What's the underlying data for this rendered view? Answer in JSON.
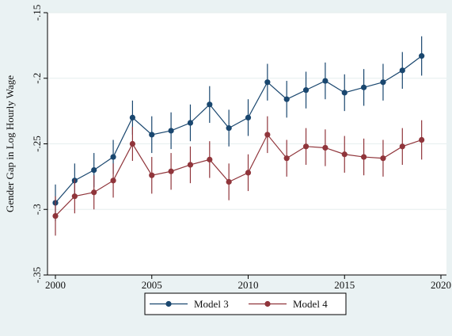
{
  "chart_data": {
    "type": "line",
    "title": "",
    "xlabel": "",
    "ylabel": "Gender Gap in Log Hourly Wage",
    "xlim": [
      2000,
      2020
    ],
    "ylim": [
      -0.35,
      -0.15
    ],
    "x_ticks": [
      2000,
      2005,
      2010,
      2015,
      2020
    ],
    "x_tick_labels": [
      "2000",
      "2005",
      "2010",
      "2015",
      "2020"
    ],
    "y_ticks": [
      -0.35,
      -0.3,
      -0.25,
      -0.2,
      -0.15
    ],
    "y_tick_labels": [
      "-.35",
      "-.3",
      "-.25",
      "-.2",
      "-.15"
    ],
    "grid": true,
    "legend_position": "bottom",
    "x": [
      2000,
      2001,
      2002,
      2003,
      2004,
      2005,
      2006,
      2007,
      2008,
      2009,
      2010,
      2011,
      2012,
      2013,
      2014,
      2015,
      2016,
      2017,
      2018,
      2019
    ],
    "series": [
      {
        "name": "Model 3",
        "color": "#1a476f",
        "values": [
          -0.295,
          -0.278,
          -0.27,
          -0.26,
          -0.23,
          -0.243,
          -0.24,
          -0.234,
          -0.22,
          -0.238,
          -0.23,
          -0.203,
          -0.216,
          -0.209,
          -0.202,
          -0.211,
          -0.207,
          -0.203,
          -0.194,
          -0.183
        ],
        "ci_low": [
          -0.309,
          -0.291,
          -0.283,
          -0.273,
          -0.243,
          -0.257,
          -0.254,
          -0.248,
          -0.234,
          -0.252,
          -0.244,
          -0.217,
          -0.23,
          -0.223,
          -0.216,
          -0.225,
          -0.221,
          -0.217,
          -0.208,
          -0.198
        ],
        "ci_high": [
          -0.281,
          -0.265,
          -0.257,
          -0.247,
          -0.217,
          -0.229,
          -0.226,
          -0.22,
          -0.206,
          -0.224,
          -0.216,
          -0.189,
          -0.202,
          -0.195,
          -0.188,
          -0.197,
          -0.193,
          -0.189,
          -0.18,
          -0.168
        ]
      },
      {
        "name": "Model 4",
        "color": "#90353b",
        "values": [
          -0.305,
          -0.29,
          -0.287,
          -0.278,
          -0.25,
          -0.274,
          -0.271,
          -0.266,
          -0.262,
          -0.279,
          -0.272,
          -0.243,
          -0.261,
          -0.252,
          -0.253,
          -0.258,
          -0.26,
          -0.261,
          -0.252,
          -0.247
        ],
        "ci_low": [
          -0.32,
          -0.303,
          -0.3,
          -0.291,
          -0.263,
          -0.288,
          -0.285,
          -0.28,
          -0.276,
          -0.293,
          -0.286,
          -0.257,
          -0.275,
          -0.266,
          -0.267,
          -0.272,
          -0.274,
          -0.275,
          -0.266,
          -0.262
        ],
        "ci_high": [
          -0.29,
          -0.277,
          -0.274,
          -0.265,
          -0.237,
          -0.26,
          -0.257,
          -0.252,
          -0.248,
          -0.265,
          -0.258,
          -0.229,
          -0.247,
          -0.238,
          -0.239,
          -0.244,
          -0.246,
          -0.247,
          -0.238,
          -0.232
        ]
      }
    ]
  }
}
